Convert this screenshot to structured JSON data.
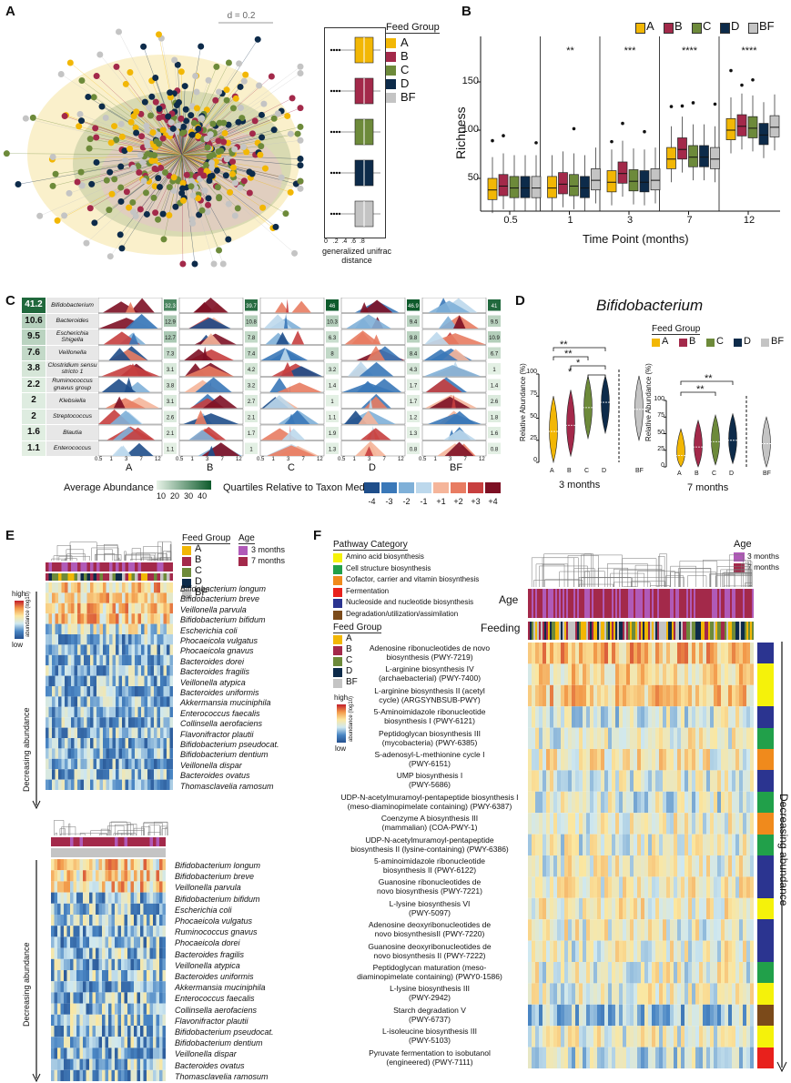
{
  "panels": {
    "A": "A",
    "B": "B",
    "C": "C",
    "D": "D",
    "E": "E",
    "F": "F"
  },
  "colors": {
    "A": "#f2b705",
    "B": "#a3294a",
    "C": "#6d8a3a",
    "D": "#0d2b4a",
    "BF": "#c4c4c4"
  },
  "panelA": {
    "scale_label": "d = 0.2",
    "legend_title": "Feed Group",
    "groups": [
      "A",
      "B",
      "C",
      "D",
      "BF"
    ],
    "axis_title_line1": "generalized unifrac",
    "axis_title_line2": "distance",
    "ticks": [
      "0",
      ".2",
      ".4",
      ".6",
      ".8"
    ]
  },
  "panelB": {
    "groups": [
      "A",
      "B",
      "C",
      "D",
      "BF"
    ],
    "ylabel": "Richness",
    "xlabel": "Time Point (months)",
    "yticks": [
      "50",
      "100",
      "150"
    ],
    "timepoints": [
      "0.5",
      "1",
      "3",
      "7",
      "12"
    ],
    "significance": [
      "",
      "**",
      "***",
      "****",
      "****"
    ]
  },
  "panelC": {
    "taxa": [
      "Bifidobacterium",
      "Bacteroides",
      "Escherichia Shigella",
      "Veillonella",
      "Clostridium sensu stricto 1",
      "Ruminococcus gnavus group",
      "Klebsiella",
      "Streptococcus",
      "Blautia",
      "Enterococcus"
    ],
    "avg": [
      "41.2",
      "10.6",
      "9.5",
      "7.6",
      "3.8",
      "2.2",
      "2",
      "2",
      "1.6",
      "1.1"
    ],
    "groups": [
      "A",
      "B",
      "C",
      "D",
      "BF"
    ],
    "values": [
      [
        "32.3",
        "12.9",
        "12.7",
        "7.3",
        "3.1",
        "3.8",
        "3.1",
        "2.6",
        "2.1",
        "1.1"
      ],
      [
        "39.7",
        "10.8",
        "7.8",
        "7.4",
        "4.2",
        "3.2",
        "2.7",
        "2.1",
        "1.7",
        "1"
      ],
      [
        "46",
        "10.3",
        "6.3",
        "8",
        "3.2",
        "1.4",
        "1",
        "1.1",
        "1.9",
        "1.3"
      ],
      [
        "46.9",
        "9.4",
        "9.8",
        "8.4",
        "4.3",
        "1.7",
        "1.7",
        "1.2",
        "1.3",
        "0.8"
      ],
      [
        "41",
        "9.5",
        "10.9",
        "6.7",
        "1",
        "1.4",
        "2.6",
        "1.8",
        "1.6",
        "0.8"
      ]
    ],
    "xticks": [
      "0.5",
      "1",
      "3",
      "7",
      "12"
    ],
    "legend_avg_title": "Average Abundance",
    "legend_avg_ticks": [
      "10",
      "20",
      "30",
      "40"
    ],
    "legend_q_title": "Quartiles Relative to Taxon Median",
    "legend_q_ticks": [
      "-4",
      "-3",
      "-2",
      "-1",
      "+1",
      "+2",
      "+3",
      "+4"
    ]
  },
  "panelD": {
    "title": "Bifidobacterium",
    "legend_title": "Feed Group",
    "groups": [
      "A",
      "B",
      "C",
      "D",
      "BF"
    ],
    "ylabel": "Relative Abundance (%)",
    "yticks": [
      "0",
      "25",
      "50",
      "75",
      "100"
    ],
    "xlabel_left": "3 months",
    "xlabel_right": "7 months",
    "sig_left": [
      "**",
      "**",
      "*",
      "*"
    ],
    "sig_right": [
      "**",
      "**"
    ]
  },
  "panelE": {
    "legend_title": "Feed Group",
    "groups": [
      "A",
      "B",
      "C",
      "D",
      "BF"
    ],
    "age_title": "Age",
    "ages": [
      "3 months",
      "7 months"
    ],
    "scale_high": "high",
    "scale_low": "low",
    "scale_title": "abundance (log10)",
    "side_label": "Decreasing abundance",
    "taxa_top": [
      "Bifidobacterium longum",
      "Bifidobacterium breve",
      "Veillonella parvula",
      "Bifidobacterium bifidum",
      "Escherichia coli",
      "Phocaeicola vulgatus",
      "Phocaeicola gnavus",
      "Bacteroides dorei",
      "Bacteroides fragilis",
      "Veillonella atypica",
      "Bacteroides uniformis",
      "Akkermansia muciniphila",
      "Enterococcus faecalis",
      "Collinsella aerofaciens",
      "Flavonifractor plautii",
      "Bifidobacterium pseudocat.",
      "Bifidobacterium dentium",
      "Veillonella dispar",
      "Bacteroides ovatus",
      "Thomasclavelia ramosum"
    ],
    "taxa_bottom": [
      "Bifidobacterium longum",
      "Bifidobacterium breve",
      "Veillonella parvula",
      "Bifidobacterium bifidum",
      "Escherichia coli",
      "Phocaeicola vulgatus",
      "Ruminococcus gnavus",
      "Phocaeicola dorei",
      "Bacteroides fragilis",
      "Veillonella atypica",
      "Bacteroides uniformis",
      "Akkermansia muciniphila",
      "Enterococcus faecalis",
      "Collinsella aerofaciens",
      "Flavonifractor plautii",
      "Bifidobacterium pseudocat.",
      "Bifidobacterium dentium",
      "Veillonella dispar",
      "Bacteroides ovatus",
      "Thomasclavelia ramosum"
    ]
  },
  "panelF": {
    "category_title": "Pathway Category",
    "categories": [
      {
        "name": "Amino acid biosynthesis",
        "color": "#f5f20a"
      },
      {
        "name": "Cell structure biosynthesis",
        "color": "#21a04a"
      },
      {
        "name": "Cofactor, carrier and vitamin biosynthesis",
        "color": "#f08a1c"
      },
      {
        "name": "Fermentation",
        "color": "#e8211c"
      },
      {
        "name": "Nucleoside and nucleotide biosynthesis",
        "color": "#2b3490"
      },
      {
        "name": "Degradation/utilization/assimilation",
        "color": "#7b4a1a"
      }
    ],
    "age_title": "Age",
    "ages": [
      "3 months",
      "7 months"
    ],
    "age_row": "Age",
    "feeding_row": "Feeding",
    "feed_title": "Feed Group",
    "groups": [
      "A",
      "B",
      "C",
      "D",
      "BF"
    ],
    "scale_high": "high",
    "scale_low": "low",
    "scale_title": "abundance (log10)",
    "side_label": "Decreasing abundance",
    "pathways": [
      {
        "l1": "Adenosine ribonucleotides de novo",
        "l2": "biosynthesis (PWY-7219)",
        "cat": 4
      },
      {
        "l1": "L-arginine biosynthesis IV",
        "l2": "(archaebacterial) (PWY-7400)",
        "cat": 0
      },
      {
        "l1": "L-arginine biosynthesis II (acetyl",
        "l2": "cycle) (ARGSYNBSUB-PWY)",
        "cat": 0
      },
      {
        "l1": "5-Aminoimidazole ribonucleotide",
        "l2": "biosynthesis I (PWY-6121)",
        "cat": 4
      },
      {
        "l1": "Peptidoglycan biosynthesis III",
        "l2": "(mycobacteria) (PWY-6385)",
        "cat": 1
      },
      {
        "l1": "S-adenosyl-L-methionine cycle I",
        "l2": "(PWY-6151)",
        "cat": 2
      },
      {
        "l1": "UMP biosynthesis I",
        "l2": "(PWY-5686)",
        "cat": 4
      },
      {
        "l1": "UDP-N-acetylmuramoyl-pentapeptide biosynthesis I",
        "l2": "(meso-diaminopimelate containing) (PWY-6387)",
        "cat": 1
      },
      {
        "l1": "Coenzyme A biosynthesis III",
        "l2": "(mammalian) (COA-PWY-1)",
        "cat": 2
      },
      {
        "l1": "UDP-N-acetylmuramoyl-pentapeptide",
        "l2": "biosynthesis II (lysine-containing) (PWY-6386)",
        "cat": 1
      },
      {
        "l1": "5-aminoimidazole ribonucleotide",
        "l2": "biosynthesis II (PWY-6122)",
        "cat": 4
      },
      {
        "l1": "Guanosine ribonucleotides de",
        "l2": "novo biosynthesis (PWY-7221)",
        "cat": 4
      },
      {
        "l1": "L-lysine biosynthesis VI",
        "l2": "(PWY-5097)",
        "cat": 0
      },
      {
        "l1": "Adenosine deoxyribonucleotides de",
        "l2": "novo biosynthesisII (PWY-7220)",
        "cat": 4
      },
      {
        "l1": "Guanosine deoxyribonucleotides de",
        "l2": "novo biosynthesis II (PWY-7222)",
        "cat": 4
      },
      {
        "l1": "Peptidoglycan maturation (meso-",
        "l2": "diaminopimelate containing) (PWY0-1586)",
        "cat": 1
      },
      {
        "l1": "L-lysine biosynthesis III",
        "l2": "(PWY-2942)",
        "cat": 0
      },
      {
        "l1": "Starch degradation V",
        "l2": "(PWY-6737)",
        "cat": 5
      },
      {
        "l1": "L-isoleucine biosynthesis III",
        "l2": "(PWY-5103)",
        "cat": 0
      },
      {
        "l1": "Pyruvate fermentation to isobutanol",
        "l2": "(engineered) (PWY-7111)",
        "cat": 3
      }
    ]
  }
}
